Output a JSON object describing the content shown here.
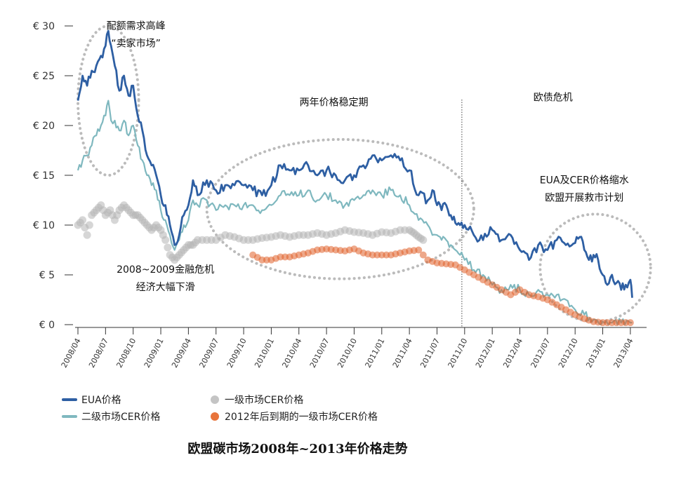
{
  "colors": {
    "eua": "#2e5fa3",
    "secondary_cer": "#7fb8bf",
    "primary_cer": "#b4b4b4",
    "primary_cer_2012": "#e0602a",
    "annotation_ellipse": "#bbbbbb",
    "axis": "#333333"
  },
  "chart_data": {
    "type": "line",
    "title": "欧盟碳市场2008年~2013年价格走势",
    "ylim": [
      0,
      30
    ],
    "yticks": [
      "€ 0",
      "€ 5",
      "€ 10",
      "€ 15",
      "€ 20",
      "€ 25",
      "€ 30"
    ],
    "ytick_values": [
      0,
      5,
      10,
      15,
      20,
      25,
      30
    ],
    "xlim": [
      0,
      61
    ],
    "xticks": [
      "2008/04",
      "2008/07",
      "2008/10",
      "2009/01",
      "2009/04",
      "2009/07",
      "2009/10",
      "2010/01",
      "2010/04",
      "2010/07",
      "2010/10",
      "2011/01",
      "2011/04",
      "2011/07",
      "2011/10",
      "2012/01",
      "2012/04",
      "2012/07",
      "2012/10",
      "2013/01",
      "2013/04"
    ],
    "xtick_values": [
      0,
      3,
      6,
      9,
      12,
      15,
      18,
      21,
      24,
      27,
      30,
      33,
      36,
      39,
      42,
      45,
      48,
      51,
      54,
      57,
      60
    ],
    "x_unit": "months since 2008/04",
    "divider_x": 41.7,
    "series": [
      {
        "name": "EUA价格",
        "key": "eua",
        "style": "line-thick",
        "x": [
          0,
          0.5,
          1,
          1.5,
          2,
          2.5,
          3,
          3.3,
          3.6,
          4,
          4.5,
          5,
          5.5,
          6,
          6.5,
          7,
          7.5,
          8,
          8.5,
          9,
          9.5,
          10,
          10.5,
          11,
          11.5,
          12,
          12.5,
          13,
          14,
          15,
          16,
          17,
          18,
          19,
          20,
          21,
          22,
          23,
          24,
          25,
          26,
          27,
          28,
          29,
          30,
          31,
          32,
          33,
          34,
          35,
          36,
          37,
          38,
          38.5,
          39,
          39.5,
          40,
          40.5,
          41,
          41.5,
          42,
          43,
          44,
          45,
          46,
          47,
          48,
          49,
          50,
          51,
          52,
          53,
          54,
          54.5,
          55,
          55.5,
          56,
          56.5,
          57,
          57.5,
          58,
          58.5,
          59,
          59.5,
          60,
          60.2
        ],
        "values": [
          22.5,
          25,
          24,
          25.5,
          26,
          27,
          28,
          29.5,
          28,
          26,
          23.5,
          25,
          23,
          24,
          21,
          19.5,
          17,
          16,
          15,
          13,
          12,
          10,
          8,
          9,
          11,
          12,
          14.5,
          13,
          14.5,
          13.5,
          14,
          14,
          14,
          13.5,
          13,
          14,
          16,
          15.5,
          15.5,
          16,
          15,
          15.5,
          15,
          14.5,
          15,
          16,
          17,
          16.5,
          17,
          16.5,
          15.5,
          13,
          12.5,
          13.5,
          12,
          11.5,
          12,
          11,
          10.2,
          10,
          10,
          9,
          8.5,
          9.5,
          8.5,
          9,
          7.5,
          6.5,
          8,
          7.5,
          8.5,
          8,
          8.2,
          8.8,
          7.5,
          6.5,
          7,
          6.5,
          5,
          4,
          5,
          4.2,
          3.5,
          4,
          4.5,
          2.7
        ]
      },
      {
        "name": "二级市场CER价格",
        "key": "secondary_cer",
        "style": "line",
        "x": [
          0,
          0.5,
          1,
          1.5,
          2,
          2.5,
          3,
          3.3,
          3.6,
          4,
          4.5,
          5,
          5.5,
          6,
          6.5,
          7,
          7.5,
          8,
          8.5,
          9,
          9.5,
          10,
          10.5,
          11,
          11.5,
          12,
          12.5,
          13,
          14,
          15,
          16,
          17,
          18,
          19,
          20,
          21,
          22,
          23,
          24,
          25,
          26,
          27,
          28,
          29,
          30,
          31,
          32,
          33,
          34,
          35,
          36,
          37,
          38,
          38.5,
          39,
          39.5,
          40,
          40.5,
          41,
          41.5,
          42,
          43,
          44,
          45,
          46,
          47,
          48,
          49,
          50,
          51,
          52,
          53,
          54,
          55,
          56,
          57,
          58,
          59,
          60,
          60.2
        ],
        "values": [
          15.5,
          16.5,
          17,
          18,
          19,
          20,
          21,
          22.5,
          20.5,
          20.5,
          19.5,
          20.5,
          19,
          20,
          18,
          16.5,
          15,
          14,
          13.5,
          11.5,
          10.5,
          9,
          7.5,
          8.5,
          10,
          10.5,
          12.5,
          12,
          12.5,
          11.5,
          12,
          12,
          12,
          12,
          11.5,
          12,
          13,
          13,
          13,
          13.5,
          12.5,
          13,
          12.5,
          12,
          12.5,
          13,
          13.5,
          13,
          13.5,
          13,
          12,
          10.5,
          10,
          9,
          9,
          8.5,
          8.5,
          8,
          7.5,
          7,
          6.5,
          5.5,
          5,
          4,
          3.5,
          4,
          3.5,
          3,
          3.5,
          3,
          3,
          2.5,
          1.5,
          1,
          0.5,
          0.3,
          0.2,
          0.2,
          0.2,
          0.2
        ]
      },
      {
        "name": "一级市场CER价格",
        "key": "primary_cer",
        "style": "dots",
        "x": [
          0,
          0.5,
          1,
          1.5,
          2,
          2.5,
          3,
          3.5,
          4,
          4.5,
          5,
          5.5,
          6,
          6.5,
          7,
          7.5,
          8,
          8.5,
          9,
          9.5,
          10,
          10.5,
          11,
          11.5,
          12,
          12.5,
          13,
          14,
          15,
          16,
          17,
          18,
          19,
          20,
          21,
          22,
          23,
          24,
          25,
          26,
          27,
          28,
          29,
          30,
          31,
          32,
          33,
          34,
          35,
          36,
          36.5,
          37,
          37.5
        ],
        "values": [
          10,
          10.5,
          9,
          11,
          11.5,
          12,
          11,
          11.5,
          10.5,
          11.5,
          12,
          11.5,
          11,
          11,
          10.5,
          10,
          9.5,
          10,
          9.5,
          8.5,
          7,
          6.5,
          7,
          7.5,
          8,
          8,
          8.5,
          8.5,
          8.5,
          9,
          8.8,
          8.5,
          8.5,
          8.7,
          8.8,
          9,
          8.8,
          9,
          9,
          9.2,
          9,
          9.2,
          9.5,
          9.3,
          9.2,
          9,
          9.3,
          9.2,
          9.5,
          9.5,
          9.2,
          8.8,
          8.5
        ]
      },
      {
        "name": "2012年后到期的一级市场CER价格",
        "key": "primary_cer_2012",
        "style": "dots",
        "x": [
          19,
          20,
          21,
          22,
          23,
          24,
          25,
          26,
          27,
          28,
          29,
          30,
          31,
          32,
          33,
          34,
          35,
          36,
          37,
          38,
          39,
          40,
          41,
          42,
          43,
          44,
          45,
          46,
          47,
          48,
          49,
          50,
          51,
          52,
          53,
          54,
          55,
          56,
          57,
          58,
          59,
          60
        ],
        "values": [
          7,
          6.5,
          6.5,
          6.8,
          6.8,
          7,
          7.2,
          7.5,
          7.6,
          7.5,
          7.4,
          7.6,
          7.2,
          7,
          7,
          7,
          7.2,
          7.4,
          7.5,
          6.5,
          6.2,
          6.1,
          6,
          5.5,
          5,
          4.5,
          4,
          3.5,
          3,
          3.5,
          3,
          2.8,
          2.5,
          2,
          1.5,
          1,
          0.6,
          0.3,
          0.2,
          0.2,
          0.2,
          0.2
        ]
      }
    ],
    "annotations": [
      {
        "lines": [
          "配额需求高峰",
          "“卖家市场”"
        ],
        "x": 6.3,
        "y": 29.7
      },
      {
        "lines": [
          "两年价格稳定期"
        ],
        "x": 27.8,
        "y": 22
      },
      {
        "lines": [
          "欧债危机"
        ],
        "x": 51.6,
        "y": 22.5
      },
      {
        "lines": [
          "EUA及CER价格缩水",
          "欧盟开展救市计划"
        ],
        "x": 55,
        "y": 14.2
      },
      {
        "lines": [
          "2008~2009金融危机",
          "经济大幅下滑"
        ],
        "x": 9.5,
        "y": 5.2
      }
    ],
    "ellipses": [
      {
        "cx": 3.3,
        "cy": 22.5,
        "rx": 3.3,
        "ry": 7.5
      },
      {
        "cx": 28.5,
        "cy": 11.6,
        "rx": 14.5,
        "ry": 7
      },
      {
        "cx": 56.2,
        "cy": 5.7,
        "rx": 6,
        "ry": 5.4
      }
    ]
  }
}
